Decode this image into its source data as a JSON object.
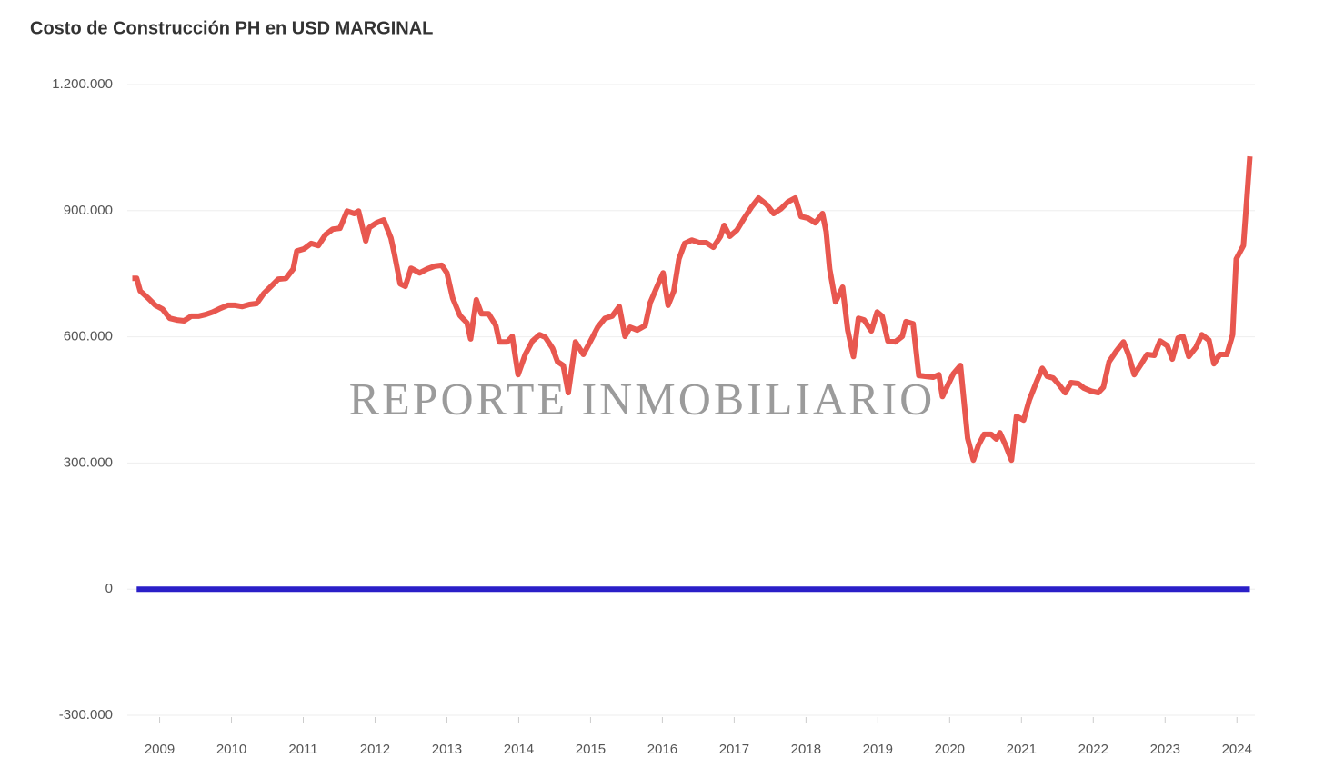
{
  "chart_data": {
    "type": "line",
    "title": "Costo de Construcción PH en USD MARGINAL",
    "annotation": "REPORTE INMOBILIARIO",
    "xlim": [
      2008.55,
      2024.25
    ],
    "xticks": [
      2009,
      2010,
      2011,
      2012,
      2013,
      2014,
      2015,
      2016,
      2017,
      2018,
      2019,
      2020,
      2021,
      2022,
      2023,
      2024
    ],
    "ylim": [
      -300000,
      1200000
    ],
    "yticks": [
      {
        "value": -300000,
        "label": "-300.000"
      },
      0,
      {
        "value": 300000,
        "label": "300.000"
      },
      {
        "value": 600000,
        "label": "600.000"
      },
      {
        "value": 900000,
        "label": "900.000"
      },
      {
        "value": 1200000,
        "label": "1.200.000"
      }
    ],
    "grid": true,
    "series": [
      {
        "color": "#e8574f",
        "x": [
          2008.62,
          2008.68,
          2008.73,
          2008.84,
          2008.94,
          2009.04,
          2009.14,
          2009.24,
          2009.34,
          2009.44,
          2009.54,
          2009.64,
          2009.74,
          2009.85,
          2009.95,
          2010.05,
          2010.15,
          2010.25,
          2010.35,
          2010.45,
          2010.55,
          2010.65,
          2010.76,
          2010.86,
          2010.91,
          2011.01,
          2011.11,
          2011.21,
          2011.31,
          2011.41,
          2011.51,
          2011.61,
          2011.71,
          2011.77,
          2011.87,
          2011.92,
          2012.02,
          2012.12,
          2012.22,
          2012.27,
          2012.35,
          2012.42,
          2012.5,
          2012.62,
          2012.72,
          2012.83,
          2012.93,
          2013.0,
          2013.08,
          2013.18,
          2013.28,
          2013.33,
          2013.41,
          2013.48,
          2013.58,
          2013.68,
          2013.73,
          2013.84,
          2013.91,
          2013.99,
          2014.09,
          2014.19,
          2014.29,
          2014.37,
          2014.47,
          2014.54,
          2014.62,
          2014.69,
          2014.79,
          2014.9,
          2015.0,
          2015.1,
          2015.2,
          2015.3,
          2015.4,
          2015.48,
          2015.55,
          2015.65,
          2015.76,
          2015.83,
          2015.91,
          2016.01,
          2016.08,
          2016.16,
          2016.23,
          2016.31,
          2016.41,
          2016.51,
          2016.61,
          2016.71,
          2016.81,
          2016.86,
          2016.94,
          2017.04,
          2017.14,
          2017.24,
          2017.34,
          2017.45,
          2017.55,
          2017.65,
          2017.75,
          2017.85,
          2017.93,
          2018.03,
          2018.13,
          2018.23,
          2018.28,
          2018.33,
          2018.41,
          2018.51,
          2018.58,
          2018.66,
          2018.73,
          2018.81,
          2018.91,
          2018.99,
          2019.06,
          2019.14,
          2019.24,
          2019.34,
          2019.39,
          2019.49,
          2019.57,
          2019.67,
          2019.77,
          2019.85,
          2019.9,
          2019.97,
          2020.05,
          2020.15,
          2020.25,
          2020.33,
          2020.4,
          2020.48,
          2020.58,
          2020.65,
          2020.7,
          2020.78,
          2020.86,
          2020.93,
          2021.03,
          2021.11,
          2021.21,
          2021.29,
          2021.36,
          2021.44,
          2021.51,
          2021.61,
          2021.69,
          2021.79,
          2021.87,
          2021.97,
          2022.07,
          2022.14,
          2022.22,
          2022.32,
          2022.42,
          2022.49,
          2022.57,
          2022.67,
          2022.75,
          2022.85,
          2022.93,
          2023.03,
          2023.1,
          2023.18,
          2023.25,
          2023.33,
          2023.43,
          2023.51,
          2023.61,
          2023.68,
          2023.76,
          2023.86,
          2023.94,
          2023.99,
          2024.09,
          2024.18
        ],
        "values": [
          739000,
          739000,
          709000,
          692000,
          675000,
          666000,
          644000,
          640000,
          638000,
          649000,
          649000,
          653000,
          659000,
          668000,
          675000,
          675000,
          672000,
          677000,
          679000,
          703000,
          720000,
          737000,
          739000,
          761000,
          804000,
          809000,
          822000,
          817000,
          843000,
          856000,
          858000,
          899000,
          893000,
          899000,
          828000,
          860000,
          871000,
          878000,
          835000,
          796000,
          726000,
          720000,
          763000,
          752000,
          761000,
          768000,
          770000,
          752000,
          692000,
          651000,
          633000,
          595000,
          688000,
          655000,
          655000,
          627000,
          588000,
          588000,
          601000,
          510000,
          558000,
          590000,
          605000,
          599000,
          573000,
          541000,
          532000,
          467000,
          588000,
          558000,
          590000,
          623000,
          644000,
          649000,
          672000,
          601000,
          623000,
          616000,
          627000,
          681000,
          713000,
          752000,
          675000,
          709000,
          785000,
          822000,
          830000,
          824000,
          824000,
          813000,
          839000,
          865000,
          839000,
          854000,
          882000,
          908000,
          930000,
          915000,
          893000,
          904000,
          921000,
          930000,
          886000,
          882000,
          871000,
          893000,
          850000,
          761000,
          683000,
          718000,
          616000,
          553000,
          644000,
          640000,
          614000,
          659000,
          649000,
          590000,
          588000,
          601000,
          636000,
          631000,
          508000,
          506000,
          504000,
          510000,
          458000,
          484000,
          512000,
          532000,
          359000,
          307000,
          342000,
          368000,
          368000,
          357000,
          372000,
          342000,
          307000,
          411000,
          402000,
          450000,
          493000,
          525000,
          506000,
          502000,
          489000,
          467000,
          491000,
          489000,
          478000,
          471000,
          467000,
          480000,
          541000,
          566000,
          588000,
          558000,
          510000,
          536000,
          558000,
          556000,
          590000,
          579000,
          547000,
          597000,
          601000,
          553000,
          575000,
          605000,
          592000,
          536000,
          558000,
          558000,
          605000,
          785000,
          817000,
          1029000
        ]
      },
      {
        "color": "#2a1fc8",
        "x": [
          2008.68,
          2024.18
        ],
        "values": [
          0,
          0
        ]
      }
    ]
  }
}
